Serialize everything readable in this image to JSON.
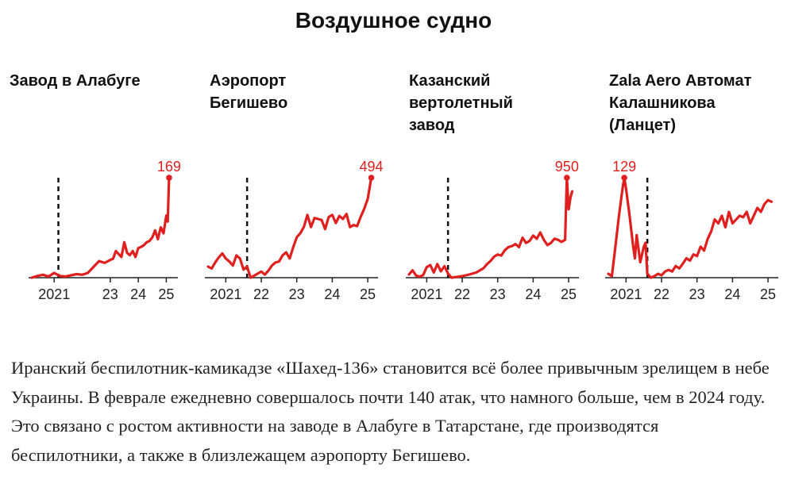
{
  "title": "Воздушное судно",
  "caption": "Иранский беспилотник-камикадзе «Шахед-136» становится всё более привычным зрелищем в небе Украины. В феврале ежедневно совершалось почти 140 атак, что намного больше, чем в 2024 году. Это связано с ростом активности на заводе в Алабуге в Татарстане, где производятся беспилотники, а также в близлежащем аэропорту Бегишево.",
  "colors": {
    "line": "#e01f1f",
    "axis": "#222222",
    "marker": "#111111"
  },
  "chart_data": [
    {
      "type": "line",
      "title_lines": [
        "Завод в Алабуге"
      ],
      "x_ticks": [
        {
          "label": "2021",
          "x": 2021.0
        },
        {
          "label": "23",
          "x": 2023.0
        },
        {
          "label": "24",
          "x": 2024.0
        },
        {
          "label": "25",
          "x": 2025.0
        }
      ],
      "xlim": [
        2020.2,
        2025.3
      ],
      "marker_x": 2021.15,
      "ylim": [
        0,
        169
      ],
      "peak_label": "169",
      "peak_x": 2025.1,
      "x": [
        2020.2,
        2020.4,
        2020.6,
        2020.8,
        2021.0,
        2021.2,
        2021.4,
        2021.6,
        2021.8,
        2022.0,
        2022.2,
        2022.4,
        2022.6,
        2022.8,
        2023.0,
        2023.1,
        2023.2,
        2023.3,
        2023.4,
        2023.5,
        2023.6,
        2023.7,
        2023.8,
        2023.9,
        2024.0,
        2024.1,
        2024.2,
        2024.3,
        2024.4,
        2024.5,
        2024.6,
        2024.7,
        2024.8,
        2024.9,
        2025.0,
        2025.05,
        2025.1
      ],
      "y": [
        0,
        3,
        5,
        2,
        8,
        3,
        2,
        4,
        6,
        5,
        8,
        18,
        28,
        25,
        30,
        32,
        45,
        40,
        35,
        60,
        42,
        38,
        45,
        35,
        50,
        52,
        55,
        60,
        62,
        68,
        80,
        65,
        85,
        75,
        105,
        95,
        169
      ]
    },
    {
      "type": "line",
      "title_lines": [
        "Аэропорт",
        "Бегишево"
      ],
      "x_ticks": [
        {
          "label": "2021",
          "x": 2021.0
        },
        {
          "label": "22",
          "x": 2022.0
        },
        {
          "label": "23",
          "x": 2023.0
        },
        {
          "label": "24",
          "x": 2024.0
        },
        {
          "label": "25",
          "x": 2025.0
        }
      ],
      "xlim": [
        2020.5,
        2025.2
      ],
      "marker_x": 2021.6,
      "ylim": [
        0,
        494
      ],
      "peak_label": "494",
      "peak_x": 2025.1,
      "x": [
        2020.5,
        2020.6,
        2020.7,
        2020.8,
        2020.9,
        2021.0,
        2021.1,
        2021.2,
        2021.3,
        2021.4,
        2021.5,
        2021.6,
        2021.7,
        2021.8,
        2021.9,
        2022.0,
        2022.1,
        2022.2,
        2022.3,
        2022.4,
        2022.5,
        2022.6,
        2022.7,
        2022.8,
        2022.9,
        2023.0,
        2023.1,
        2023.2,
        2023.3,
        2023.4,
        2023.5,
        2023.6,
        2023.7,
        2023.8,
        2023.9,
        2024.0,
        2024.1,
        2024.2,
        2024.3,
        2024.4,
        2024.5,
        2024.6,
        2024.7,
        2024.8,
        2024.9,
        2025.0,
        2025.1
      ],
      "y": [
        55,
        45,
        75,
        100,
        120,
        95,
        80,
        60,
        110,
        95,
        40,
        55,
        0,
        10,
        20,
        30,
        15,
        35,
        60,
        75,
        80,
        110,
        125,
        95,
        150,
        200,
        220,
        250,
        310,
        250,
        295,
        290,
        285,
        240,
        300,
        310,
        270,
        305,
        290,
        315,
        250,
        260,
        255,
        300,
        340,
        390,
        494
      ]
    },
    {
      "type": "line",
      "title_lines": [
        "Казанский",
        "вертолетный",
        "завод"
      ],
      "x_ticks": [
        {
          "label": "2021",
          "x": 2021.0
        },
        {
          "label": "22",
          "x": 2022.0
        },
        {
          "label": "23",
          "x": 2023.0
        },
        {
          "label": "24",
          "x": 2024.0
        },
        {
          "label": "25",
          "x": 2025.0
        }
      ],
      "xlim": [
        2020.5,
        2025.2
      ],
      "marker_x": 2021.6,
      "ylim": [
        0,
        950
      ],
      "peak_label": "950",
      "peak_x": 2024.95,
      "x": [
        2020.5,
        2020.6,
        2020.7,
        2020.8,
        2020.9,
        2021.0,
        2021.1,
        2021.2,
        2021.3,
        2021.4,
        2021.5,
        2021.6,
        2021.7,
        2021.8,
        2021.9,
        2022.0,
        2022.2,
        2022.4,
        2022.6,
        2022.7,
        2022.8,
        2022.9,
        2023.0,
        2023.1,
        2023.2,
        2023.3,
        2023.4,
        2023.5,
        2023.6,
        2023.7,
        2023.8,
        2023.9,
        2024.0,
        2024.1,
        2024.2,
        2024.3,
        2024.4,
        2024.5,
        2024.6,
        2024.7,
        2024.8,
        2024.9,
        2024.95,
        2025.0,
        2025.05,
        2025.1
      ],
      "y": [
        30,
        70,
        20,
        10,
        25,
        100,
        120,
        50,
        130,
        60,
        110,
        40,
        0,
        5,
        10,
        15,
        30,
        50,
        90,
        130,
        160,
        200,
        220,
        210,
        260,
        290,
        300,
        320,
        290,
        380,
        330,
        350,
        400,
        370,
        430,
        360,
        310,
        330,
        370,
        360,
        340,
        360,
        950,
        650,
        760,
        820
      ]
    },
    {
      "type": "line",
      "title_lines": [
        "Zala Aero Автомат",
        "Калашникова",
        "(Ланцет)"
      ],
      "x_ticks": [
        {
          "label": "2021",
          "x": 2021.0
        },
        {
          "label": "22",
          "x": 2022.0
        },
        {
          "label": "23",
          "x": 2023.0
        },
        {
          "label": "24",
          "x": 2024.0
        },
        {
          "label": "25",
          "x": 2025.0
        }
      ],
      "xlim": [
        2020.5,
        2025.2
      ],
      "marker_x": 2021.6,
      "ylim": [
        0,
        129
      ],
      "peak_label": "129",
      "peak_x": 2020.95,
      "x": [
        2020.5,
        2020.6,
        2020.7,
        2020.8,
        2020.9,
        2020.95,
        2021.0,
        2021.1,
        2021.2,
        2021.25,
        2021.3,
        2021.4,
        2021.5,
        2021.55,
        2021.6,
        2021.7,
        2021.8,
        2021.9,
        2022.0,
        2022.1,
        2022.2,
        2022.3,
        2022.4,
        2022.5,
        2022.6,
        2022.7,
        2022.8,
        2022.9,
        2023.0,
        2023.1,
        2023.2,
        2023.3,
        2023.4,
        2023.5,
        2023.6,
        2023.7,
        2023.8,
        2023.9,
        2024.0,
        2024.1,
        2024.2,
        2024.3,
        2024.4,
        2024.5,
        2024.6,
        2024.7,
        2024.8,
        2024.9,
        2025.0,
        2025.1
      ],
      "y": [
        5,
        2,
        40,
        80,
        115,
        129,
        115,
        80,
        40,
        25,
        55,
        20,
        40,
        45,
        5,
        0,
        2,
        5,
        3,
        8,
        10,
        8,
        15,
        12,
        18,
        25,
        22,
        30,
        28,
        40,
        35,
        50,
        60,
        75,
        70,
        80,
        65,
        85,
        70,
        75,
        80,
        78,
        85,
        70,
        80,
        90,
        85,
        95,
        100,
        98
      ]
    }
  ]
}
